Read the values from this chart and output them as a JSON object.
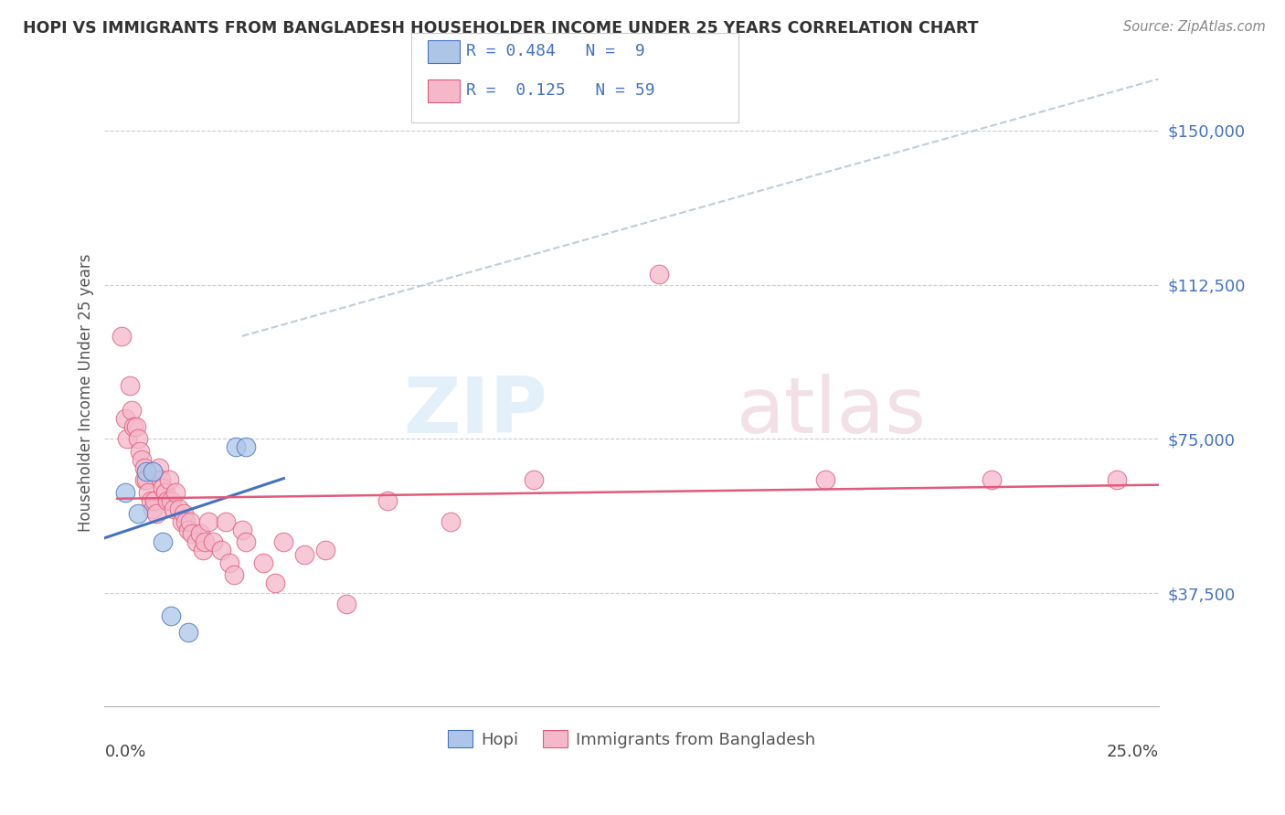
{
  "title": "HOPI VS IMMIGRANTS FROM BANGLADESH HOUSEHOLDER INCOME UNDER 25 YEARS CORRELATION CHART",
  "source": "Source: ZipAtlas.com",
  "ylabel": "Householder Income Under 25 years",
  "xlim": [
    -0.3,
    25.0
  ],
  "ylim": [
    10000,
    162500
  ],
  "yticks": [
    37500,
    75000,
    112500,
    150000
  ],
  "ytick_labels": [
    "$37,500",
    "$75,000",
    "$112,500",
    "$150,000"
  ],
  "hopi_R": 0.484,
  "hopi_N": 9,
  "bangladesh_R": 0.125,
  "bangladesh_N": 59,
  "hopi_color": "#adc6e8",
  "hopi_edge_color": "#4472c4",
  "bangladesh_color": "#f5b8cb",
  "bangladesh_edge_color": "#e05a7a",
  "hopi_line_color": "#4472c4",
  "bangladesh_line_color": "#e05a7a",
  "trend_line_color": "#b8c8d8",
  "background_color": "#ffffff",
  "grid_color": "#cccccc",
  "hopi_scatter": [
    [
      0.2,
      62000
    ],
    [
      0.5,
      57000
    ],
    [
      0.7,
      67000
    ],
    [
      0.85,
      67000
    ],
    [
      1.1,
      50000
    ],
    [
      2.85,
      73000
    ],
    [
      3.1,
      73000
    ],
    [
      1.3,
      32000
    ],
    [
      1.7,
      28000
    ]
  ],
  "bangladesh_scatter": [
    [
      0.1,
      100000
    ],
    [
      0.2,
      80000
    ],
    [
      0.25,
      75000
    ],
    [
      0.3,
      88000
    ],
    [
      0.35,
      82000
    ],
    [
      0.4,
      78000
    ],
    [
      0.45,
      78000
    ],
    [
      0.5,
      75000
    ],
    [
      0.55,
      72000
    ],
    [
      0.6,
      70000
    ],
    [
      0.65,
      68000
    ],
    [
      0.65,
      65000
    ],
    [
      0.7,
      65000
    ],
    [
      0.75,
      62000
    ],
    [
      0.8,
      60000
    ],
    [
      0.85,
      58000
    ],
    [
      0.9,
      60000
    ],
    [
      0.95,
      57000
    ],
    [
      1.0,
      68000
    ],
    [
      1.05,
      65000
    ],
    [
      1.1,
      63000
    ],
    [
      1.15,
      62000
    ],
    [
      1.2,
      60000
    ],
    [
      1.25,
      65000
    ],
    [
      1.3,
      60000
    ],
    [
      1.35,
      58000
    ],
    [
      1.4,
      62000
    ],
    [
      1.5,
      58000
    ],
    [
      1.55,
      55000
    ],
    [
      1.6,
      57000
    ],
    [
      1.65,
      55000
    ],
    [
      1.7,
      53000
    ],
    [
      1.75,
      55000
    ],
    [
      1.8,
      52000
    ],
    [
      1.9,
      50000
    ],
    [
      2.0,
      52000
    ],
    [
      2.05,
      48000
    ],
    [
      2.1,
      50000
    ],
    [
      2.2,
      55000
    ],
    [
      2.3,
      50000
    ],
    [
      2.5,
      48000
    ],
    [
      2.6,
      55000
    ],
    [
      2.7,
      45000
    ],
    [
      2.8,
      42000
    ],
    [
      3.0,
      53000
    ],
    [
      3.1,
      50000
    ],
    [
      3.5,
      45000
    ],
    [
      3.8,
      40000
    ],
    [
      4.0,
      50000
    ],
    [
      4.5,
      47000
    ],
    [
      5.0,
      48000
    ],
    [
      5.5,
      35000
    ],
    [
      6.5,
      60000
    ],
    [
      8.0,
      55000
    ],
    [
      10.0,
      65000
    ],
    [
      13.0,
      115000
    ],
    [
      17.0,
      65000
    ],
    [
      21.0,
      65000
    ],
    [
      24.0,
      65000
    ]
  ],
  "watermark_zip": "ZIP",
  "watermark_atlas": "atlas",
  "legend_items": [
    {
      "color": "#adc6e8",
      "edge": "#4472c4",
      "label": "R = 0.484   N =  9"
    },
    {
      "color": "#f5b8cb",
      "edge": "#e05a7a",
      "label": "R =  0.125   N = 59"
    }
  ]
}
